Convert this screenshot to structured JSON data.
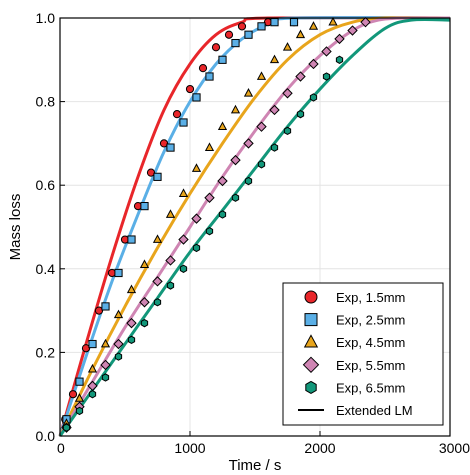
{
  "chart_data": {
    "type": "scatter",
    "xlabel": "Time / s",
    "ylabel": "Mass loss",
    "xlim": [
      0,
      3000
    ],
    "ylim": [
      0,
      1.0
    ],
    "x_ticks": [
      "0",
      "1000",
      "2000",
      "3000"
    ],
    "y_ticks": [
      "0.0",
      "0.2",
      "0.4",
      "0.6",
      "0.8",
      "1.0"
    ],
    "grid": true,
    "legend_position": "bottom-right",
    "legend": [
      {
        "label": "Exp, 1.5mm",
        "marker": "circle",
        "color": "#e8262a"
      },
      {
        "label": "Exp, 2.5mm",
        "marker": "square",
        "color": "#5aafe6"
      },
      {
        "label": "Exp, 4.5mm",
        "marker": "triangle",
        "color": "#e8a51c"
      },
      {
        "label": "Exp, 5.5mm",
        "marker": "diamond",
        "color": "#cf85b3"
      },
      {
        "label": "Exp, 6.5mm",
        "marker": "hexagon",
        "color": "#12977a"
      },
      {
        "label": "Extended LM",
        "marker": "line",
        "color": "#000000"
      }
    ],
    "series": [
      {
        "name": "Exp, 1.5mm",
        "color": "#e8262a",
        "marker": "circle",
        "points": [
          [
            40,
            0.04
          ],
          [
            100,
            0.1
          ],
          [
            200,
            0.21
          ],
          [
            300,
            0.3
          ],
          [
            400,
            0.39
          ],
          [
            500,
            0.47
          ],
          [
            600,
            0.55
          ],
          [
            700,
            0.63
          ],
          [
            800,
            0.7
          ],
          [
            900,
            0.77
          ],
          [
            1000,
            0.83
          ],
          [
            1100,
            0.88
          ],
          [
            1200,
            0.93
          ],
          [
            1300,
            0.96
          ],
          [
            1400,
            0.98
          ],
          [
            1600,
            0.99
          ],
          [
            1800,
            0.99
          ]
        ]
      },
      {
        "name": "Exp, 2.5mm",
        "color": "#5aafe6",
        "marker": "square",
        "points": [
          [
            50,
            0.04
          ],
          [
            150,
            0.13
          ],
          [
            250,
            0.22
          ],
          [
            350,
            0.31
          ],
          [
            450,
            0.39
          ],
          [
            550,
            0.47
          ],
          [
            650,
            0.55
          ],
          [
            750,
            0.62
          ],
          [
            850,
            0.69
          ],
          [
            950,
            0.75
          ],
          [
            1050,
            0.81
          ],
          [
            1150,
            0.86
          ],
          [
            1250,
            0.9
          ],
          [
            1350,
            0.94
          ],
          [
            1450,
            0.96
          ],
          [
            1550,
            0.98
          ],
          [
            1650,
            0.99
          ],
          [
            1800,
            0.99
          ]
        ]
      },
      {
        "name": "Exp, 4.5mm",
        "color": "#e8a51c",
        "marker": "triangle",
        "points": [
          [
            50,
            0.03
          ],
          [
            150,
            0.09
          ],
          [
            250,
            0.16
          ],
          [
            350,
            0.22
          ],
          [
            450,
            0.29
          ],
          [
            550,
            0.35
          ],
          [
            650,
            0.41
          ],
          [
            750,
            0.47
          ],
          [
            850,
            0.53
          ],
          [
            950,
            0.58
          ],
          [
            1050,
            0.64
          ],
          [
            1150,
            0.69
          ],
          [
            1250,
            0.74
          ],
          [
            1350,
            0.78
          ],
          [
            1450,
            0.82
          ],
          [
            1550,
            0.86
          ],
          [
            1650,
            0.9
          ],
          [
            1750,
            0.93
          ],
          [
            1850,
            0.96
          ],
          [
            1950,
            0.98
          ],
          [
            2100,
            0.99
          ]
        ]
      },
      {
        "name": "Exp, 5.5mm",
        "color": "#cf85b3",
        "marker": "diamond",
        "points": [
          [
            50,
            0.02
          ],
          [
            150,
            0.07
          ],
          [
            250,
            0.12
          ],
          [
            350,
            0.17
          ],
          [
            450,
            0.22
          ],
          [
            550,
            0.27
          ],
          [
            650,
            0.32
          ],
          [
            750,
            0.37
          ],
          [
            850,
            0.42
          ],
          [
            950,
            0.47
          ],
          [
            1050,
            0.52
          ],
          [
            1150,
            0.57
          ],
          [
            1250,
            0.61
          ],
          [
            1350,
            0.66
          ],
          [
            1450,
            0.7
          ],
          [
            1550,
            0.74
          ],
          [
            1650,
            0.78
          ],
          [
            1750,
            0.82
          ],
          [
            1850,
            0.86
          ],
          [
            1950,
            0.89
          ],
          [
            2050,
            0.92
          ],
          [
            2150,
            0.95
          ],
          [
            2250,
            0.97
          ],
          [
            2350,
            0.99
          ]
        ]
      },
      {
        "name": "Exp, 6.5mm",
        "color": "#12977a",
        "marker": "hexagon",
        "points": [
          [
            50,
            0.02
          ],
          [
            150,
            0.06
          ],
          [
            250,
            0.1
          ],
          [
            350,
            0.14
          ],
          [
            450,
            0.19
          ],
          [
            550,
            0.23
          ],
          [
            650,
            0.27
          ],
          [
            750,
            0.32
          ],
          [
            850,
            0.36
          ],
          [
            950,
            0.4
          ],
          [
            1050,
            0.45
          ],
          [
            1150,
            0.49
          ],
          [
            1250,
            0.53
          ],
          [
            1350,
            0.57
          ],
          [
            1450,
            0.61
          ],
          [
            1550,
            0.65
          ],
          [
            1650,
            0.69
          ],
          [
            1750,
            0.73
          ],
          [
            1850,
            0.77
          ],
          [
            1950,
            0.81
          ],
          [
            2050,
            0.86
          ],
          [
            2150,
            0.9
          ]
        ]
      }
    ],
    "model_curves": [
      {
        "name": "Extended LM (1.5mm)",
        "color": "#e8262a",
        "points": [
          [
            0,
            0
          ],
          [
            200,
            0.22
          ],
          [
            400,
            0.43
          ],
          [
            600,
            0.62
          ],
          [
            800,
            0.78
          ],
          [
            1000,
            0.89
          ],
          [
            1200,
            0.96
          ],
          [
            1400,
            0.99
          ],
          [
            1600,
            1.0
          ],
          [
            3000,
            1.0
          ]
        ]
      },
      {
        "name": "Extended LM (2.5mm)",
        "color": "#5aafe6",
        "points": [
          [
            0,
            0
          ],
          [
            200,
            0.19
          ],
          [
            400,
            0.37
          ],
          [
            600,
            0.53
          ],
          [
            800,
            0.68
          ],
          [
            1000,
            0.8
          ],
          [
            1200,
            0.89
          ],
          [
            1400,
            0.95
          ],
          [
            1600,
            0.985
          ],
          [
            1800,
            1.0
          ],
          [
            3000,
            1.0
          ]
        ]
      },
      {
        "name": "Extended LM (4.5mm)",
        "color": "#e8a51c",
        "points": [
          [
            0,
            0
          ],
          [
            250,
            0.16
          ],
          [
            500,
            0.31
          ],
          [
            750,
            0.45
          ],
          [
            1000,
            0.58
          ],
          [
            1250,
            0.7
          ],
          [
            1500,
            0.81
          ],
          [
            1750,
            0.9
          ],
          [
            2000,
            0.96
          ],
          [
            2250,
            0.99
          ],
          [
            2500,
            1.0
          ],
          [
            3000,
            1.0
          ]
        ]
      },
      {
        "name": "Extended LM (5.5mm)",
        "color": "#cf85b3",
        "points": [
          [
            0,
            0
          ],
          [
            250,
            0.13
          ],
          [
            500,
            0.26
          ],
          [
            750,
            0.38
          ],
          [
            1000,
            0.5
          ],
          [
            1250,
            0.62
          ],
          [
            1500,
            0.73
          ],
          [
            1750,
            0.83
          ],
          [
            2000,
            0.91
          ],
          [
            2250,
            0.97
          ],
          [
            2450,
            0.995
          ],
          [
            2700,
            1.0
          ],
          [
            3000,
            1.0
          ]
        ]
      },
      {
        "name": "Extended LM (6.5mm)",
        "color": "#12977a",
        "points": [
          [
            0,
            0
          ],
          [
            250,
            0.11
          ],
          [
            500,
            0.22
          ],
          [
            750,
            0.33
          ],
          [
            1000,
            0.44
          ],
          [
            1250,
            0.54
          ],
          [
            1500,
            0.64
          ],
          [
            1750,
            0.74
          ],
          [
            2000,
            0.83
          ],
          [
            2250,
            0.91
          ],
          [
            2500,
            0.975
          ],
          [
            2700,
            0.995
          ],
          [
            3000,
            0.995
          ]
        ]
      }
    ]
  }
}
